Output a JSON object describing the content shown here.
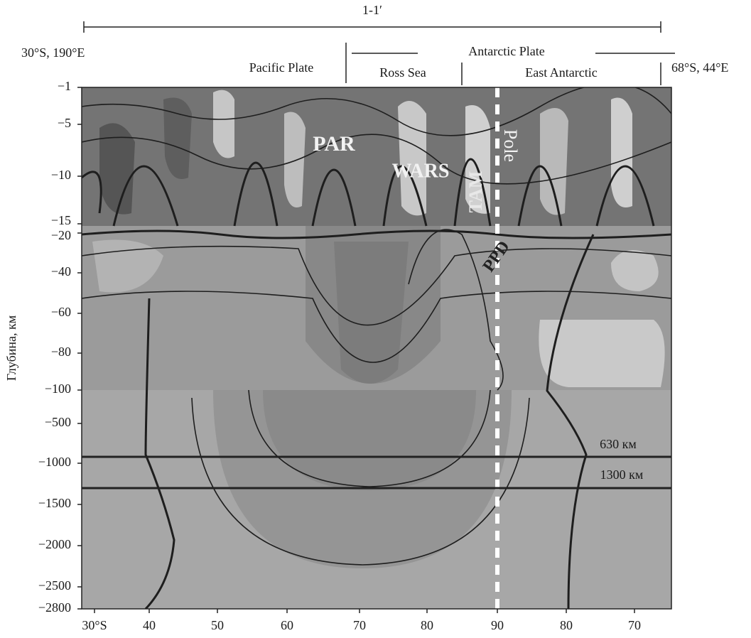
{
  "chart_data": {
    "type": "contour",
    "title": "1-1′",
    "start_label": "30°S, 190°E",
    "end_label": "68°S, 44°E",
    "ylabel": "Глубина, км",
    "categories": [
      "30°S",
      "40",
      "50",
      "60",
      "70",
      "80",
      "90",
      "80",
      "70"
    ],
    "ylim": [
      -1,
      -2800
    ],
    "yticks": [
      {
        "value": -1,
        "label": "−1"
      },
      {
        "value": -5,
        "label": "−5"
      },
      {
        "value": -10,
        "label": "−10"
      },
      {
        "value": -15,
        "label": "−15"
      },
      {
        "value": -20,
        "label": "−20"
      },
      {
        "value": -40,
        "label": "−40"
      },
      {
        "value": -60,
        "label": "−60"
      },
      {
        "value": -80,
        "label": "−80"
      },
      {
        "value": -100,
        "label": "−100"
      },
      {
        "value": -500,
        "label": "−500"
      },
      {
        "value": -1000,
        "label": "−1000"
      },
      {
        "value": -1500,
        "label": "−1500"
      },
      {
        "value": -2000,
        "label": "−2000"
      },
      {
        "value": -2500,
        "label": "−2500"
      },
      {
        "value": -2800,
        "label": "−2800"
      }
    ],
    "annotations": [
      "Pacific Plate",
      "Antarctic Plate",
      "Ross Sea",
      "East Antarctic",
      "PAR",
      "WARS",
      "TAM",
      "Pole",
      "PPD",
      "630 км",
      "1300 км"
    ]
  }
}
